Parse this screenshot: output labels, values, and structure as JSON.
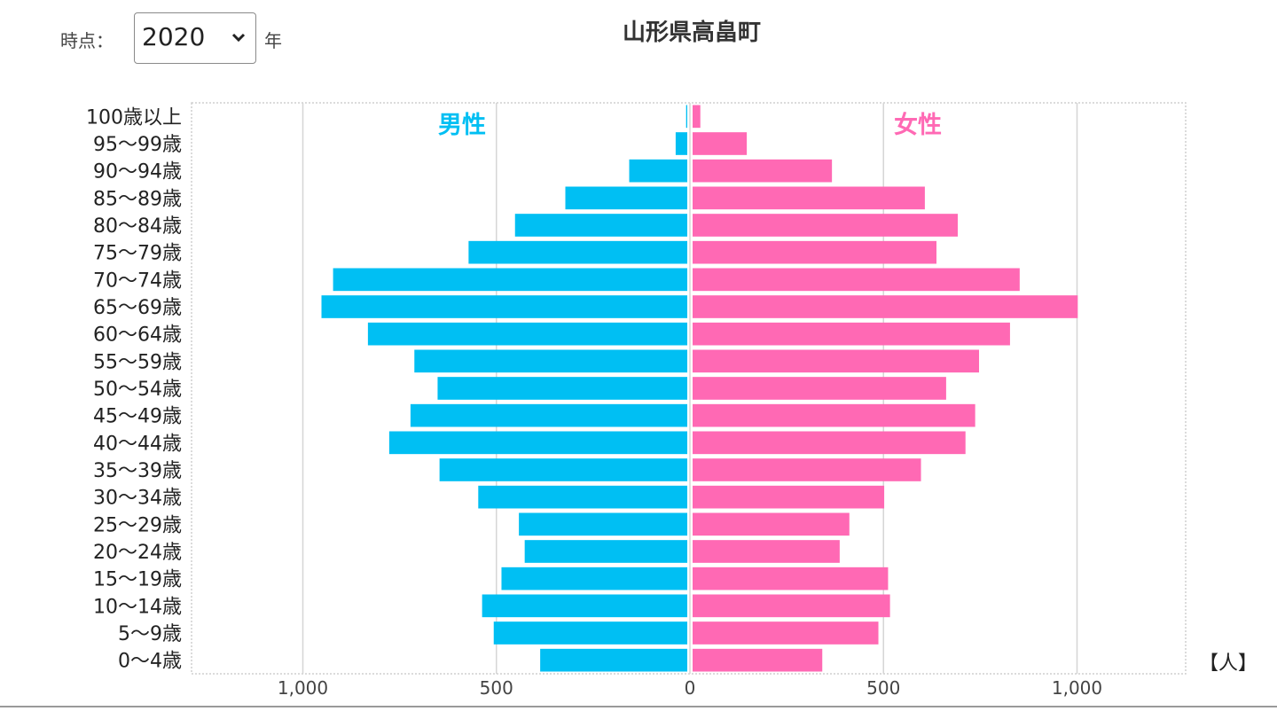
{
  "controls": {
    "year_label": "時点：",
    "year_value": "2020",
    "year_suffix": "年"
  },
  "title": "山形県高畠町",
  "unit": "【人】",
  "colors": {
    "male": "#00BFF3",
    "female": "#FF69B4"
  },
  "chart_data": {
    "type": "bar",
    "orientation": "horizontal-pyramid",
    "categories": [
      "100歳以上",
      "95〜99歳",
      "90〜94歳",
      "85〜89歳",
      "80〜84歳",
      "75〜79歳",
      "70〜74歳",
      "65〜69歳",
      "60〜64歳",
      "55〜59歳",
      "50〜54歳",
      "45〜49歳",
      "40〜44歳",
      "35〜39歳",
      "30〜34歳",
      "25〜29歳",
      "20〜24歳",
      "15〜19歳",
      "10〜14歳",
      "5〜9歳",
      "0〜4歳"
    ],
    "series": [
      {
        "name": "男性",
        "values": [
          3,
          30,
          150,
          315,
          445,
          565,
          915,
          945,
          825,
          705,
          645,
          715,
          770,
          640,
          540,
          435,
          420,
          480,
          530,
          500,
          380
        ]
      },
      {
        "name": "女性",
        "values": [
          20,
          140,
          360,
          600,
          685,
          630,
          845,
          995,
          820,
          740,
          655,
          730,
          705,
          590,
          495,
          405,
          380,
          505,
          510,
          480,
          335
        ]
      }
    ],
    "xticks": [
      "1,000",
      "500",
      "0",
      "500",
      "1,000"
    ],
    "xlim": [
      -1300,
      1300
    ],
    "grid": true
  }
}
